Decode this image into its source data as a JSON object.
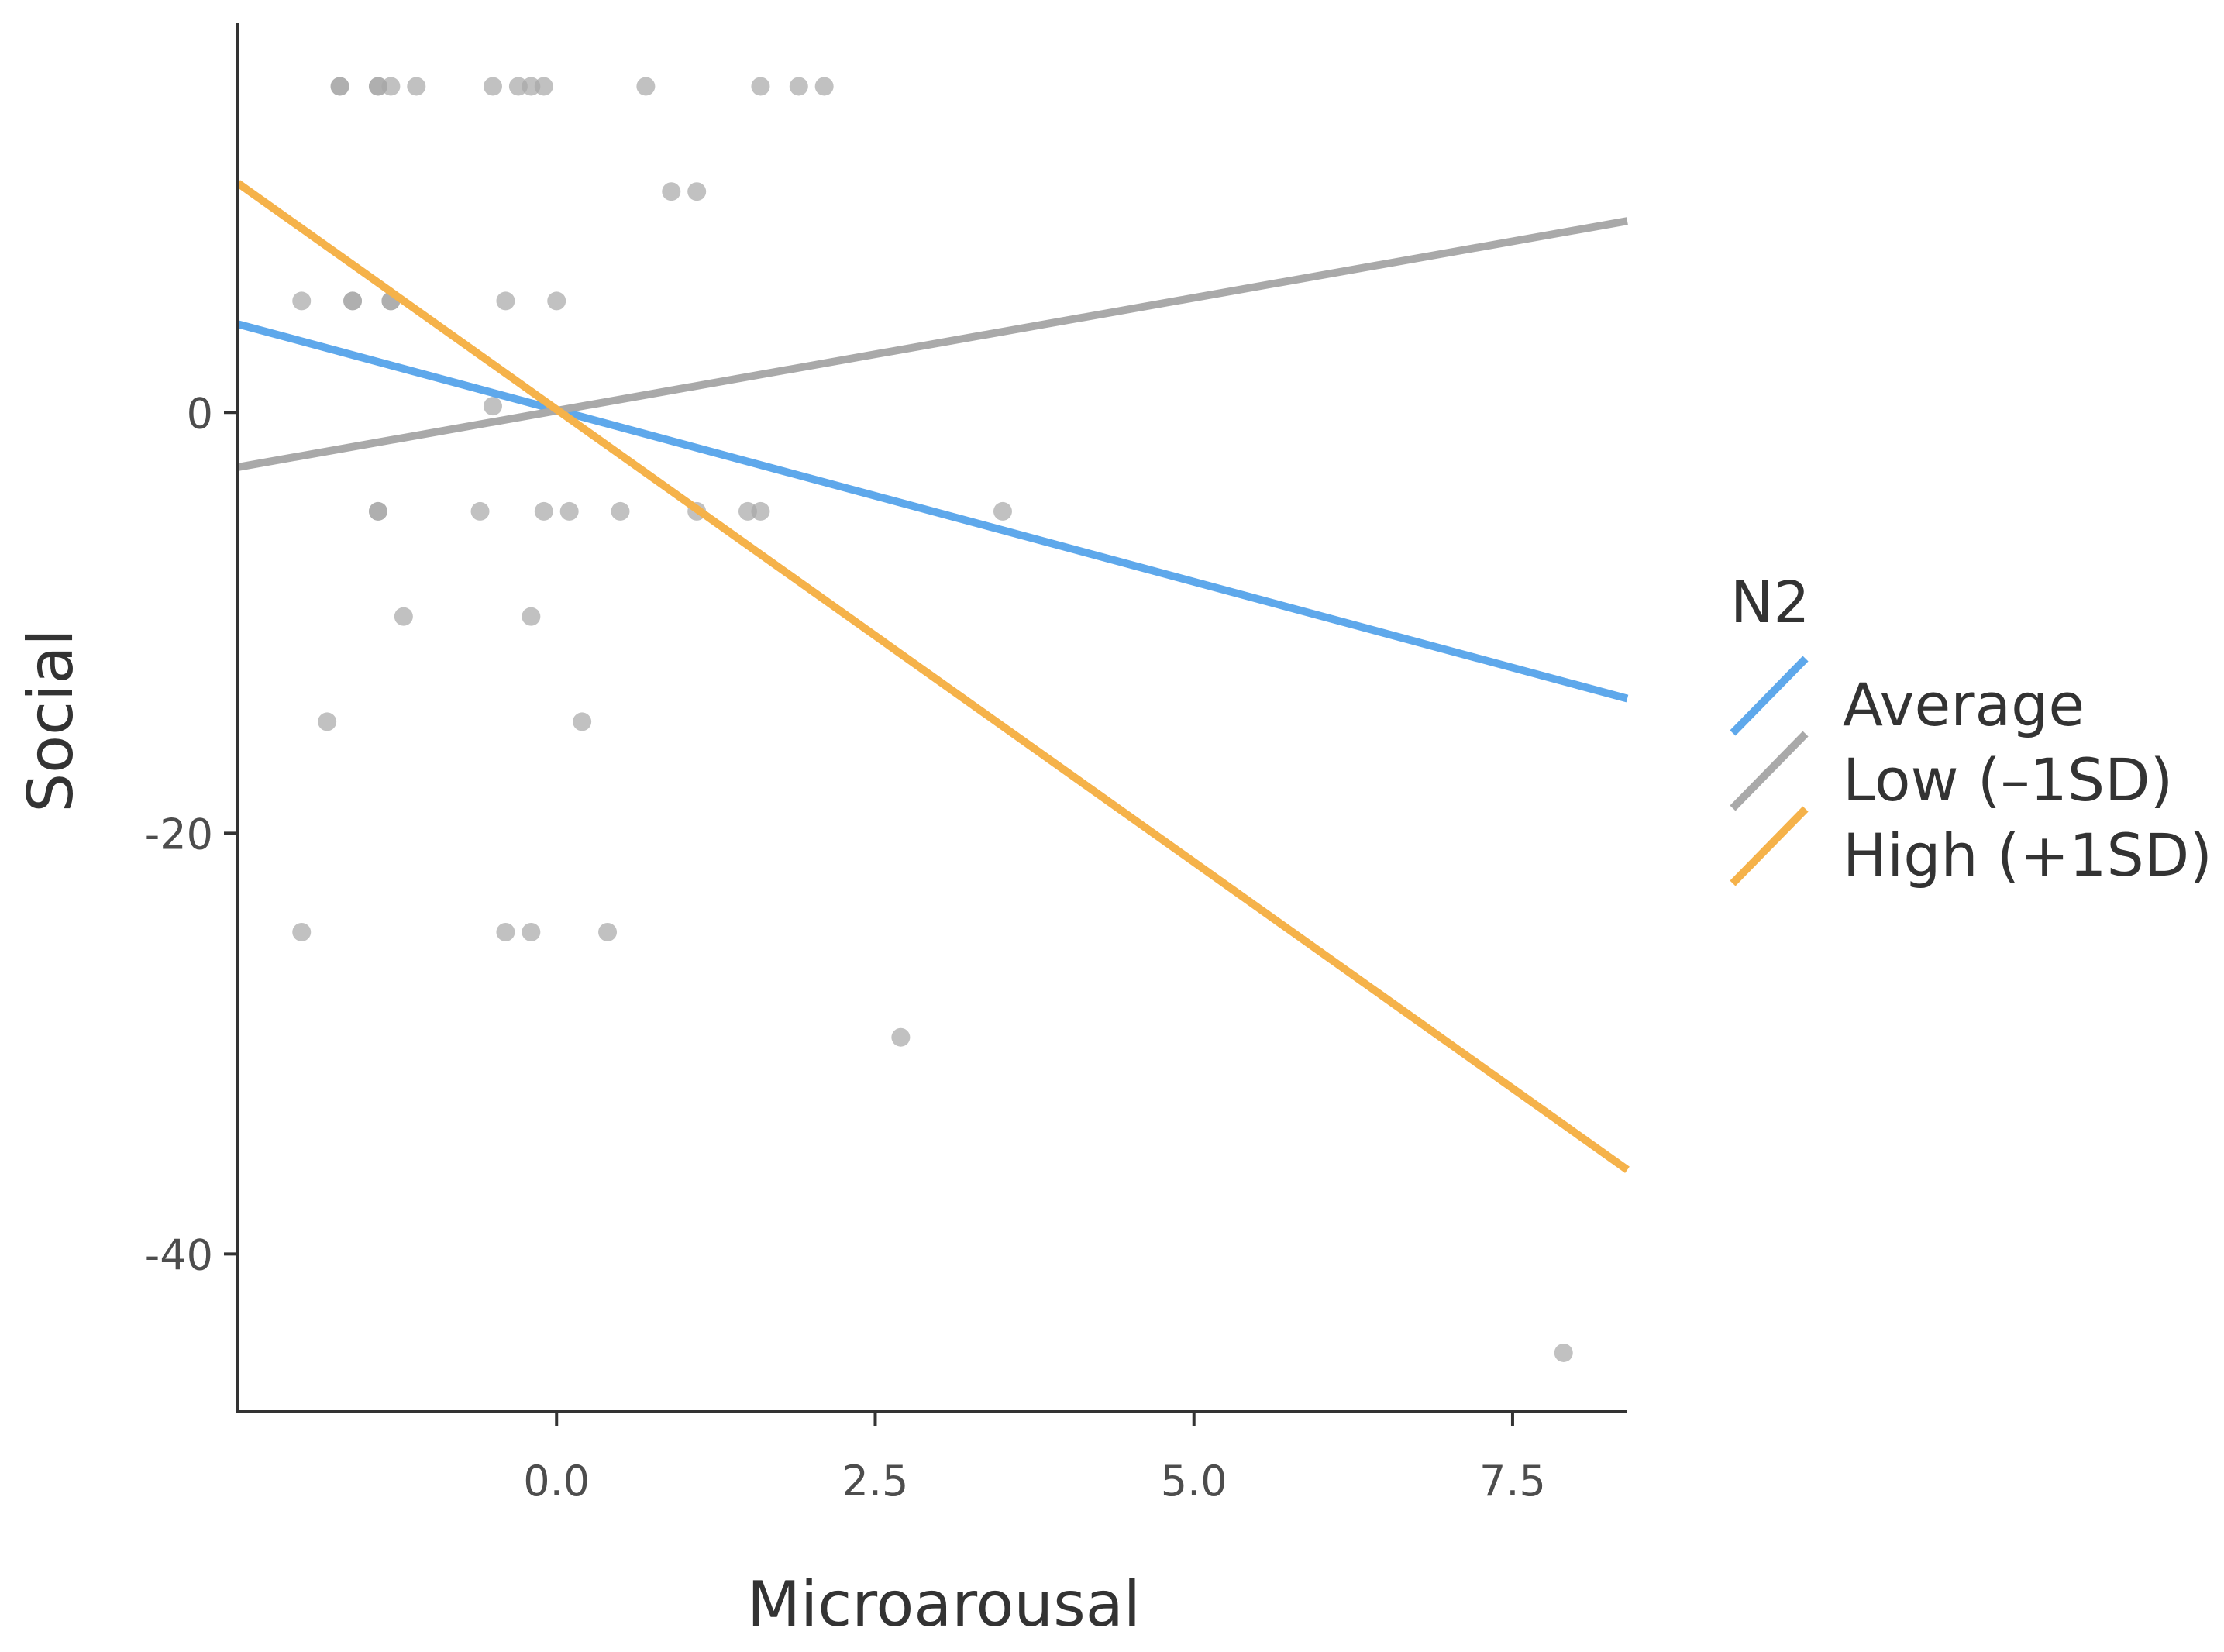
{
  "chart_data": {
    "type": "scatter",
    "title": "",
    "xlabel": "Microarousal",
    "ylabel": "Social",
    "xlim": [
      -2.5,
      8.4
    ],
    "ylim": [
      -47.5,
      18.5
    ],
    "grid": false,
    "x_ticks": [
      {
        "value": 0,
        "label": "0.0"
      },
      {
        "value": 2.5,
        "label": "2.5"
      },
      {
        "value": 5,
        "label": "5.0"
      },
      {
        "value": 7.5,
        "label": "7.5"
      }
    ],
    "y_ticks": [
      {
        "value": 0,
        "label": "0"
      },
      {
        "value": -20,
        "label": "-20"
      },
      {
        "value": -40,
        "label": "-40"
      }
    ],
    "points_color": "#a6a6a6",
    "points": [
      {
        "x": -1.7,
        "y": 15.5
      },
      {
        "x": -1.7,
        "y": 15.5
      },
      {
        "x": -1.4,
        "y": 15.5
      },
      {
        "x": -1.4,
        "y": 15.5
      },
      {
        "x": -1.3,
        "y": 15.5
      },
      {
        "x": -1.1,
        "y": 15.5
      },
      {
        "x": -0.5,
        "y": 15.5
      },
      {
        "x": -0.3,
        "y": 15.5
      },
      {
        "x": -0.2,
        "y": 15.5
      },
      {
        "x": -0.1,
        "y": 15.5
      },
      {
        "x": 0.7,
        "y": 15.5
      },
      {
        "x": 1.6,
        "y": 15.5
      },
      {
        "x": 1.9,
        "y": 15.5
      },
      {
        "x": 2.1,
        "y": 15.5
      },
      {
        "x": 0.9,
        "y": 10.5
      },
      {
        "x": 1.1,
        "y": 10.5
      },
      {
        "x": -2.0,
        "y": 5.3
      },
      {
        "x": -1.6,
        "y": 5.3
      },
      {
        "x": -1.6,
        "y": 5.3
      },
      {
        "x": -1.3,
        "y": 5.3
      },
      {
        "x": -1.3,
        "y": 5.3
      },
      {
        "x": -0.4,
        "y": 5.3
      },
      {
        "x": 0.0,
        "y": 5.3
      },
      {
        "x": -0.5,
        "y": 0.3
      },
      {
        "x": -1.4,
        "y": -4.7
      },
      {
        "x": -1.4,
        "y": -4.7
      },
      {
        "x": -0.6,
        "y": -4.7
      },
      {
        "x": -0.1,
        "y": -4.7
      },
      {
        "x": 0.1,
        "y": -4.7
      },
      {
        "x": 0.5,
        "y": -4.7
      },
      {
        "x": 1.1,
        "y": -4.7
      },
      {
        "x": 1.5,
        "y": -4.7
      },
      {
        "x": 1.6,
        "y": -4.7
      },
      {
        "x": 3.5,
        "y": -4.7
      },
      {
        "x": -1.2,
        "y": -9.7
      },
      {
        "x": -0.2,
        "y": -9.7
      },
      {
        "x": -1.8,
        "y": -14.7
      },
      {
        "x": 0.2,
        "y": -14.7
      },
      {
        "x": -2.0,
        "y": -24.7
      },
      {
        "x": -0.4,
        "y": -24.7
      },
      {
        "x": -0.2,
        "y": -24.7
      },
      {
        "x": 0.4,
        "y": -24.7
      },
      {
        "x": 2.7,
        "y": -29.7
      },
      {
        "x": 7.9,
        "y": -44.7
      }
    ],
    "series": [
      {
        "name": "Average",
        "color": "#5ea8eb",
        "x": [
          -2.5,
          8.4
        ],
        "y": [
          4.2,
          -13.6
        ]
      },
      {
        "name": "Low (–1SD)",
        "color": "#a9a9a9",
        "x": [
          -2.5,
          8.4
        ],
        "y": [
          -2.6,
          9.1
        ]
      },
      {
        "name": "High (+1SD)",
        "color": "#f5b24a",
        "x": [
          -2.5,
          8.4
        ],
        "y": [
          10.9,
          -36.0
        ]
      }
    ],
    "legend": {
      "title": "N2",
      "position": "right",
      "entries": [
        "Average",
        "Low (–1SD)",
        "High (+1SD)"
      ]
    }
  }
}
